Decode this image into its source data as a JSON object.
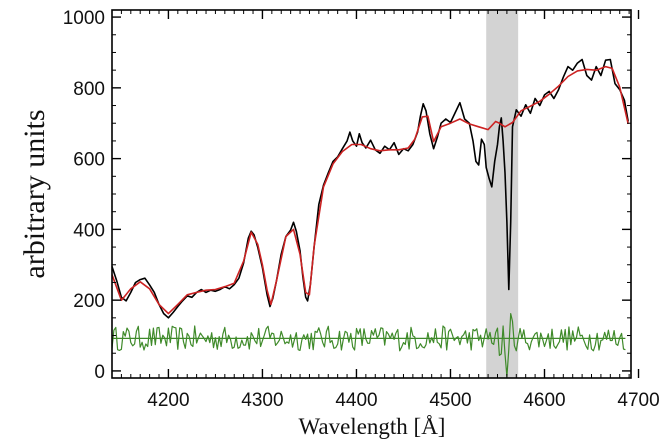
{
  "chart_data": {
    "type": "line",
    "title": "",
    "xlabel": "Wavelength [Å]",
    "ylabel": "arbitrary units",
    "xlim": [
      4140,
      4692
    ],
    "ylim": [
      -20,
      1020
    ],
    "x_ticks": [
      4200,
      4300,
      4400,
      4500,
      4600,
      4700
    ],
    "y_ticks": [
      0,
      200,
      400,
      600,
      800,
      1000
    ],
    "grid": false,
    "legend": "none",
    "shaded_region": {
      "x": [
        4538,
        4572
      ],
      "color": "#d3d3d3"
    },
    "series": [
      {
        "role": "observed spectrum",
        "color": "#000000",
        "points": [
          [
            4140,
            295
          ],
          [
            4145,
            255
          ],
          [
            4150,
            208
          ],
          [
            4155,
            198
          ],
          [
            4160,
            222
          ],
          [
            4165,
            250
          ],
          [
            4170,
            258
          ],
          [
            4175,
            262
          ],
          [
            4180,
            243
          ],
          [
            4185,
            222
          ],
          [
            4190,
            188
          ],
          [
            4195,
            162
          ],
          [
            4200,
            150
          ],
          [
            4205,
            165
          ],
          [
            4210,
            182
          ],
          [
            4215,
            198
          ],
          [
            4220,
            212
          ],
          [
            4225,
            208
          ],
          [
            4230,
            222
          ],
          [
            4235,
            230
          ],
          [
            4240,
            222
          ],
          [
            4245,
            228
          ],
          [
            4250,
            225
          ],
          [
            4255,
            230
          ],
          [
            4260,
            238
          ],
          [
            4265,
            232
          ],
          [
            4270,
            244
          ],
          [
            4275,
            262
          ],
          [
            4280,
            305
          ],
          [
            4285,
            375
          ],
          [
            4288,
            395
          ],
          [
            4291,
            385
          ],
          [
            4295,
            350
          ],
          [
            4300,
            292
          ],
          [
            4305,
            215
          ],
          [
            4308,
            182
          ],
          [
            4311,
            205
          ],
          [
            4315,
            255
          ],
          [
            4320,
            330
          ],
          [
            4325,
            380
          ],
          [
            4330,
            398
          ],
          [
            4333,
            420
          ],
          [
            4336,
            395
          ],
          [
            4340,
            340
          ],
          [
            4343,
            265
          ],
          [
            4346,
            208
          ],
          [
            4348,
            198
          ],
          [
            4351,
            245
          ],
          [
            4355,
            350
          ],
          [
            4360,
            470
          ],
          [
            4365,
            525
          ],
          [
            4370,
            560
          ],
          [
            4375,
            592
          ],
          [
            4380,
            605
          ],
          [
            4385,
            628
          ],
          [
            4390,
            650
          ],
          [
            4393,
            675
          ],
          [
            4396,
            650
          ],
          [
            4400,
            635
          ],
          [
            4403,
            670
          ],
          [
            4406,
            645
          ],
          [
            4410,
            630
          ],
          [
            4415,
            652
          ],
          [
            4420,
            625
          ],
          [
            4425,
            615
          ],
          [
            4430,
            635
          ],
          [
            4435,
            625
          ],
          [
            4440,
            645
          ],
          [
            4445,
            612
          ],
          [
            4450,
            628
          ],
          [
            4455,
            622
          ],
          [
            4460,
            640
          ],
          [
            4465,
            675
          ],
          [
            4468,
            720
          ],
          [
            4471,
            755
          ],
          [
            4474,
            735
          ],
          [
            4478,
            670
          ],
          [
            4482,
            628
          ],
          [
            4486,
            660
          ],
          [
            4490,
            700
          ],
          [
            4495,
            712
          ],
          [
            4500,
            702
          ],
          [
            4505,
            730
          ],
          [
            4510,
            758
          ],
          [
            4515,
            712
          ],
          [
            4520,
            700
          ],
          [
            4524,
            650
          ],
          [
            4527,
            592
          ],
          [
            4530,
            582
          ],
          [
            4533,
            655
          ],
          [
            4536,
            640
          ],
          [
            4538,
            575
          ],
          [
            4541,
            545
          ],
          [
            4544,
            520
          ],
          [
            4547,
            592
          ],
          [
            4550,
            640
          ],
          [
            4552,
            690
          ],
          [
            4554,
            715
          ],
          [
            4556,
            650
          ],
          [
            4558,
            560
          ],
          [
            4560,
            420
          ],
          [
            4562,
            230
          ],
          [
            4564,
            420
          ],
          [
            4566,
            690
          ],
          [
            4570,
            738
          ],
          [
            4575,
            720
          ],
          [
            4580,
            752
          ],
          [
            4585,
            728
          ],
          [
            4590,
            770
          ],
          [
            4595,
            750
          ],
          [
            4600,
            780
          ],
          [
            4605,
            790
          ],
          [
            4610,
            770
          ],
          [
            4615,
            795
          ],
          [
            4620,
            830
          ],
          [
            4625,
            860
          ],
          [
            4630,
            850
          ],
          [
            4635,
            870
          ],
          [
            4640,
            880
          ],
          [
            4645,
            835
          ],
          [
            4650,
            822
          ],
          [
            4655,
            860
          ],
          [
            4660,
            835
          ],
          [
            4665,
            878
          ],
          [
            4670,
            880
          ],
          [
            4675,
            812
          ],
          [
            4680,
            795
          ],
          [
            4685,
            765
          ],
          [
            4689,
            705
          ]
        ]
      },
      {
        "role": "model fit",
        "color": "#cc2222",
        "points": [
          [
            4140,
            272
          ],
          [
            4150,
            200
          ],
          [
            4160,
            232
          ],
          [
            4170,
            252
          ],
          [
            4180,
            232
          ],
          [
            4190,
            188
          ],
          [
            4200,
            162
          ],
          [
            4210,
            188
          ],
          [
            4220,
            215
          ],
          [
            4230,
            222
          ],
          [
            4240,
            228
          ],
          [
            4250,
            230
          ],
          [
            4260,
            238
          ],
          [
            4270,
            248
          ],
          [
            4280,
            310
          ],
          [
            4288,
            392
          ],
          [
            4295,
            358
          ],
          [
            4300,
            300
          ],
          [
            4305,
            228
          ],
          [
            4309,
            188
          ],
          [
            4315,
            255
          ],
          [
            4325,
            380
          ],
          [
            4333,
            400
          ],
          [
            4340,
            330
          ],
          [
            4346,
            222
          ],
          [
            4350,
            215
          ],
          [
            4355,
            352
          ],
          [
            4365,
            520
          ],
          [
            4375,
            585
          ],
          [
            4385,
            620
          ],
          [
            4395,
            640
          ],
          [
            4405,
            640
          ],
          [
            4415,
            628
          ],
          [
            4425,
            622
          ],
          [
            4435,
            625
          ],
          [
            4445,
            625
          ],
          [
            4455,
            630
          ],
          [
            4462,
            655
          ],
          [
            4470,
            718
          ],
          [
            4476,
            720
          ],
          [
            4482,
            648
          ],
          [
            4490,
            690
          ],
          [
            4500,
            700
          ],
          [
            4510,
            712
          ],
          [
            4520,
            698
          ],
          [
            4530,
            690
          ],
          [
            4540,
            682
          ],
          [
            4548,
            705
          ],
          [
            4552,
            700
          ],
          [
            4558,
            690
          ],
          [
            4566,
            702
          ],
          [
            4575,
            735
          ],
          [
            4585,
            748
          ],
          [
            4595,
            762
          ],
          [
            4605,
            782
          ],
          [
            4615,
            805
          ],
          [
            4625,
            832
          ],
          [
            4635,
            848
          ],
          [
            4645,
            852
          ],
          [
            4655,
            850
          ],
          [
            4665,
            860
          ],
          [
            4672,
            855
          ],
          [
            4680,
            802
          ],
          [
            4689,
            698
          ]
        ]
      },
      {
        "role": "residuals",
        "color": "#3f8a2a",
        "points": []
      },
      {
        "role": "residual baseline",
        "color": "#3f8a2a",
        "points": [
          [
            4140,
            92
          ],
          [
            4686,
            92
          ]
        ]
      }
    ]
  }
}
